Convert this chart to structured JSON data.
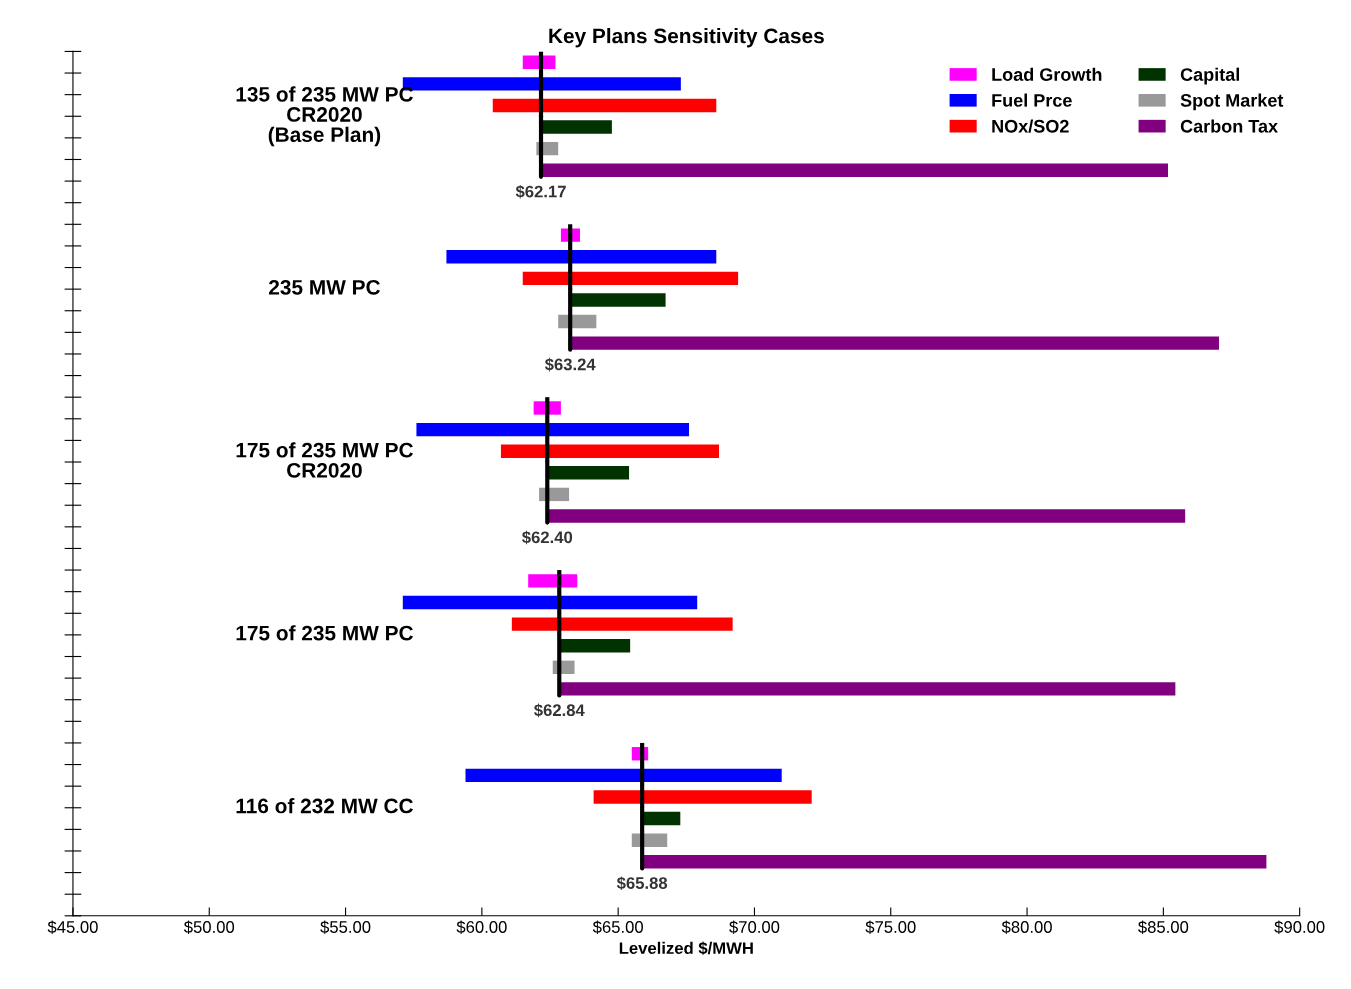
{
  "chart_data": {
    "type": "bar",
    "orientation": "horizontal",
    "title": "Key Plans Sensitivity Cases",
    "xlabel": "Levelized $/MWH",
    "categories": [
      "135 of 235 MW PC\nCR2020\n(Base Plan)",
      "235 MW PC",
      "175 of 235 MW PC\nCR2020",
      "175 of 235 MW PC",
      "116 of 232 MW CC"
    ],
    "series": [
      {
        "name": "Load Growth",
        "color": "#ff00ff",
        "base": [
          61.5,
          62.9,
          61.9,
          61.7,
          65.5
        ],
        "values": [
          1.2,
          0.7,
          1.0,
          1.8,
          0.6
        ]
      },
      {
        "name": "Fuel Prce",
        "color": "#0000ff",
        "base": [
          57.1,
          58.7,
          57.6,
          57.1,
          59.4
        ],
        "values": [
          10.2,
          9.9,
          10.0,
          10.8,
          11.6
        ]
      },
      {
        "name": "NOx/SO2",
        "color": "#ff0000",
        "base": [
          60.4,
          61.5,
          60.7,
          61.1,
          64.1
        ],
        "values": [
          8.2,
          7.9,
          8.0,
          8.1,
          8.0
        ]
      },
      {
        "name": "Capital",
        "color": "#003300",
        "base": [
          62.17,
          63.24,
          62.4,
          62.84,
          65.88
        ],
        "values": [
          2.6,
          3.5,
          3.0,
          2.6,
          1.4
        ]
      },
      {
        "name": "Spot Market",
        "color": "#999999",
        "base": [
          62.0,
          62.8,
          62.1,
          62.6,
          65.5
        ],
        "values": [
          0.8,
          1.4,
          1.1,
          0.8,
          1.3
        ]
      },
      {
        "name": "Carbon Tax",
        "color": "#800080",
        "base": [
          62.17,
          63.24,
          62.4,
          62.84,
          65.88
        ],
        "values": [
          23.0,
          23.8,
          23.4,
          22.6,
          22.9
        ]
      }
    ],
    "annotations": [
      {
        "text": "$62.17",
        "x": 62.17,
        "y": "135 of 235 MW PC\nCR2020\n(Base Plan)"
      },
      {
        "text": "$63.24",
        "x": 63.24,
        "y": "235 MW PC"
      },
      {
        "text": "$62.40",
        "x": 62.4,
        "y": "175 of 235 MW PC\nCR2020"
      },
      {
        "text": "$62.84",
        "x": 62.84,
        "y": "175 of 235 MW PC"
      },
      {
        "text": "$65.88",
        "x": 65.88,
        "y": "116 of 232 MW CC"
      }
    ],
    "xlim": [
      45,
      90
    ],
    "xticks": [
      {
        "value": 45,
        "label": "$45.00"
      },
      {
        "value": 50,
        "label": "$50.00"
      },
      {
        "value": 55,
        "label": "$55.00"
      },
      {
        "value": 60,
        "label": "$60.00"
      },
      {
        "value": 65,
        "label": "$65.00"
      },
      {
        "value": 70,
        "label": "$70.00"
      },
      {
        "value": 75,
        "label": "$75.00"
      },
      {
        "value": 80,
        "label": "$80.00"
      },
      {
        "value": 85,
        "label": "$85.00"
      },
      {
        "value": 90,
        "label": "$90.00"
      }
    ],
    "legend": "top right",
    "grid": false
  }
}
